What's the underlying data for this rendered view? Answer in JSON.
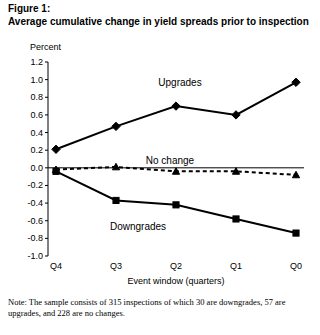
{
  "chart_data": {
    "type": "line",
    "title": "Figure 1:",
    "subtitle": "Average cumulative change in yield spreads prior to inspection",
    "y_label": "Percent",
    "x_label": "Event window (quarters)",
    "note": "Note: The sample consists of 315 inspections of which 30 are downgrades, 57 are upgrades, and 228 are no changes.",
    "categories": [
      "Q4",
      "Q3",
      "Q2",
      "Q1",
      "Q0"
    ],
    "series": [
      {
        "name": "Upgrades",
        "color": "#000000",
        "marker": "diamond",
        "line_style": "solid",
        "values": [
          0.21,
          0.47,
          0.7,
          0.6,
          0.97
        ]
      },
      {
        "name": "No change",
        "color": "#000000",
        "marker": "triangle",
        "line_style": "dashed",
        "values": [
          -0.02,
          0.01,
          -0.04,
          -0.04,
          -0.08
        ]
      },
      {
        "name": "Downgrades",
        "color": "#000000",
        "marker": "square",
        "line_style": "solid",
        "values": [
          -0.04,
          -0.37,
          -0.42,
          -0.58,
          -0.74
        ]
      }
    ],
    "ylim": [
      -1.0,
      1.2
    ],
    "yticks": [
      {
        "value": -1.0,
        "label": "-1.0"
      },
      -0.8,
      -0.6,
      -0.4,
      -0.2,
      {
        "value": 0,
        "label": "0.0"
      },
      0.2,
      0.4,
      0.6,
      0.8,
      {
        "value": 1.0,
        "label": "1.0"
      },
      1.2
    ],
    "grid": false
  }
}
